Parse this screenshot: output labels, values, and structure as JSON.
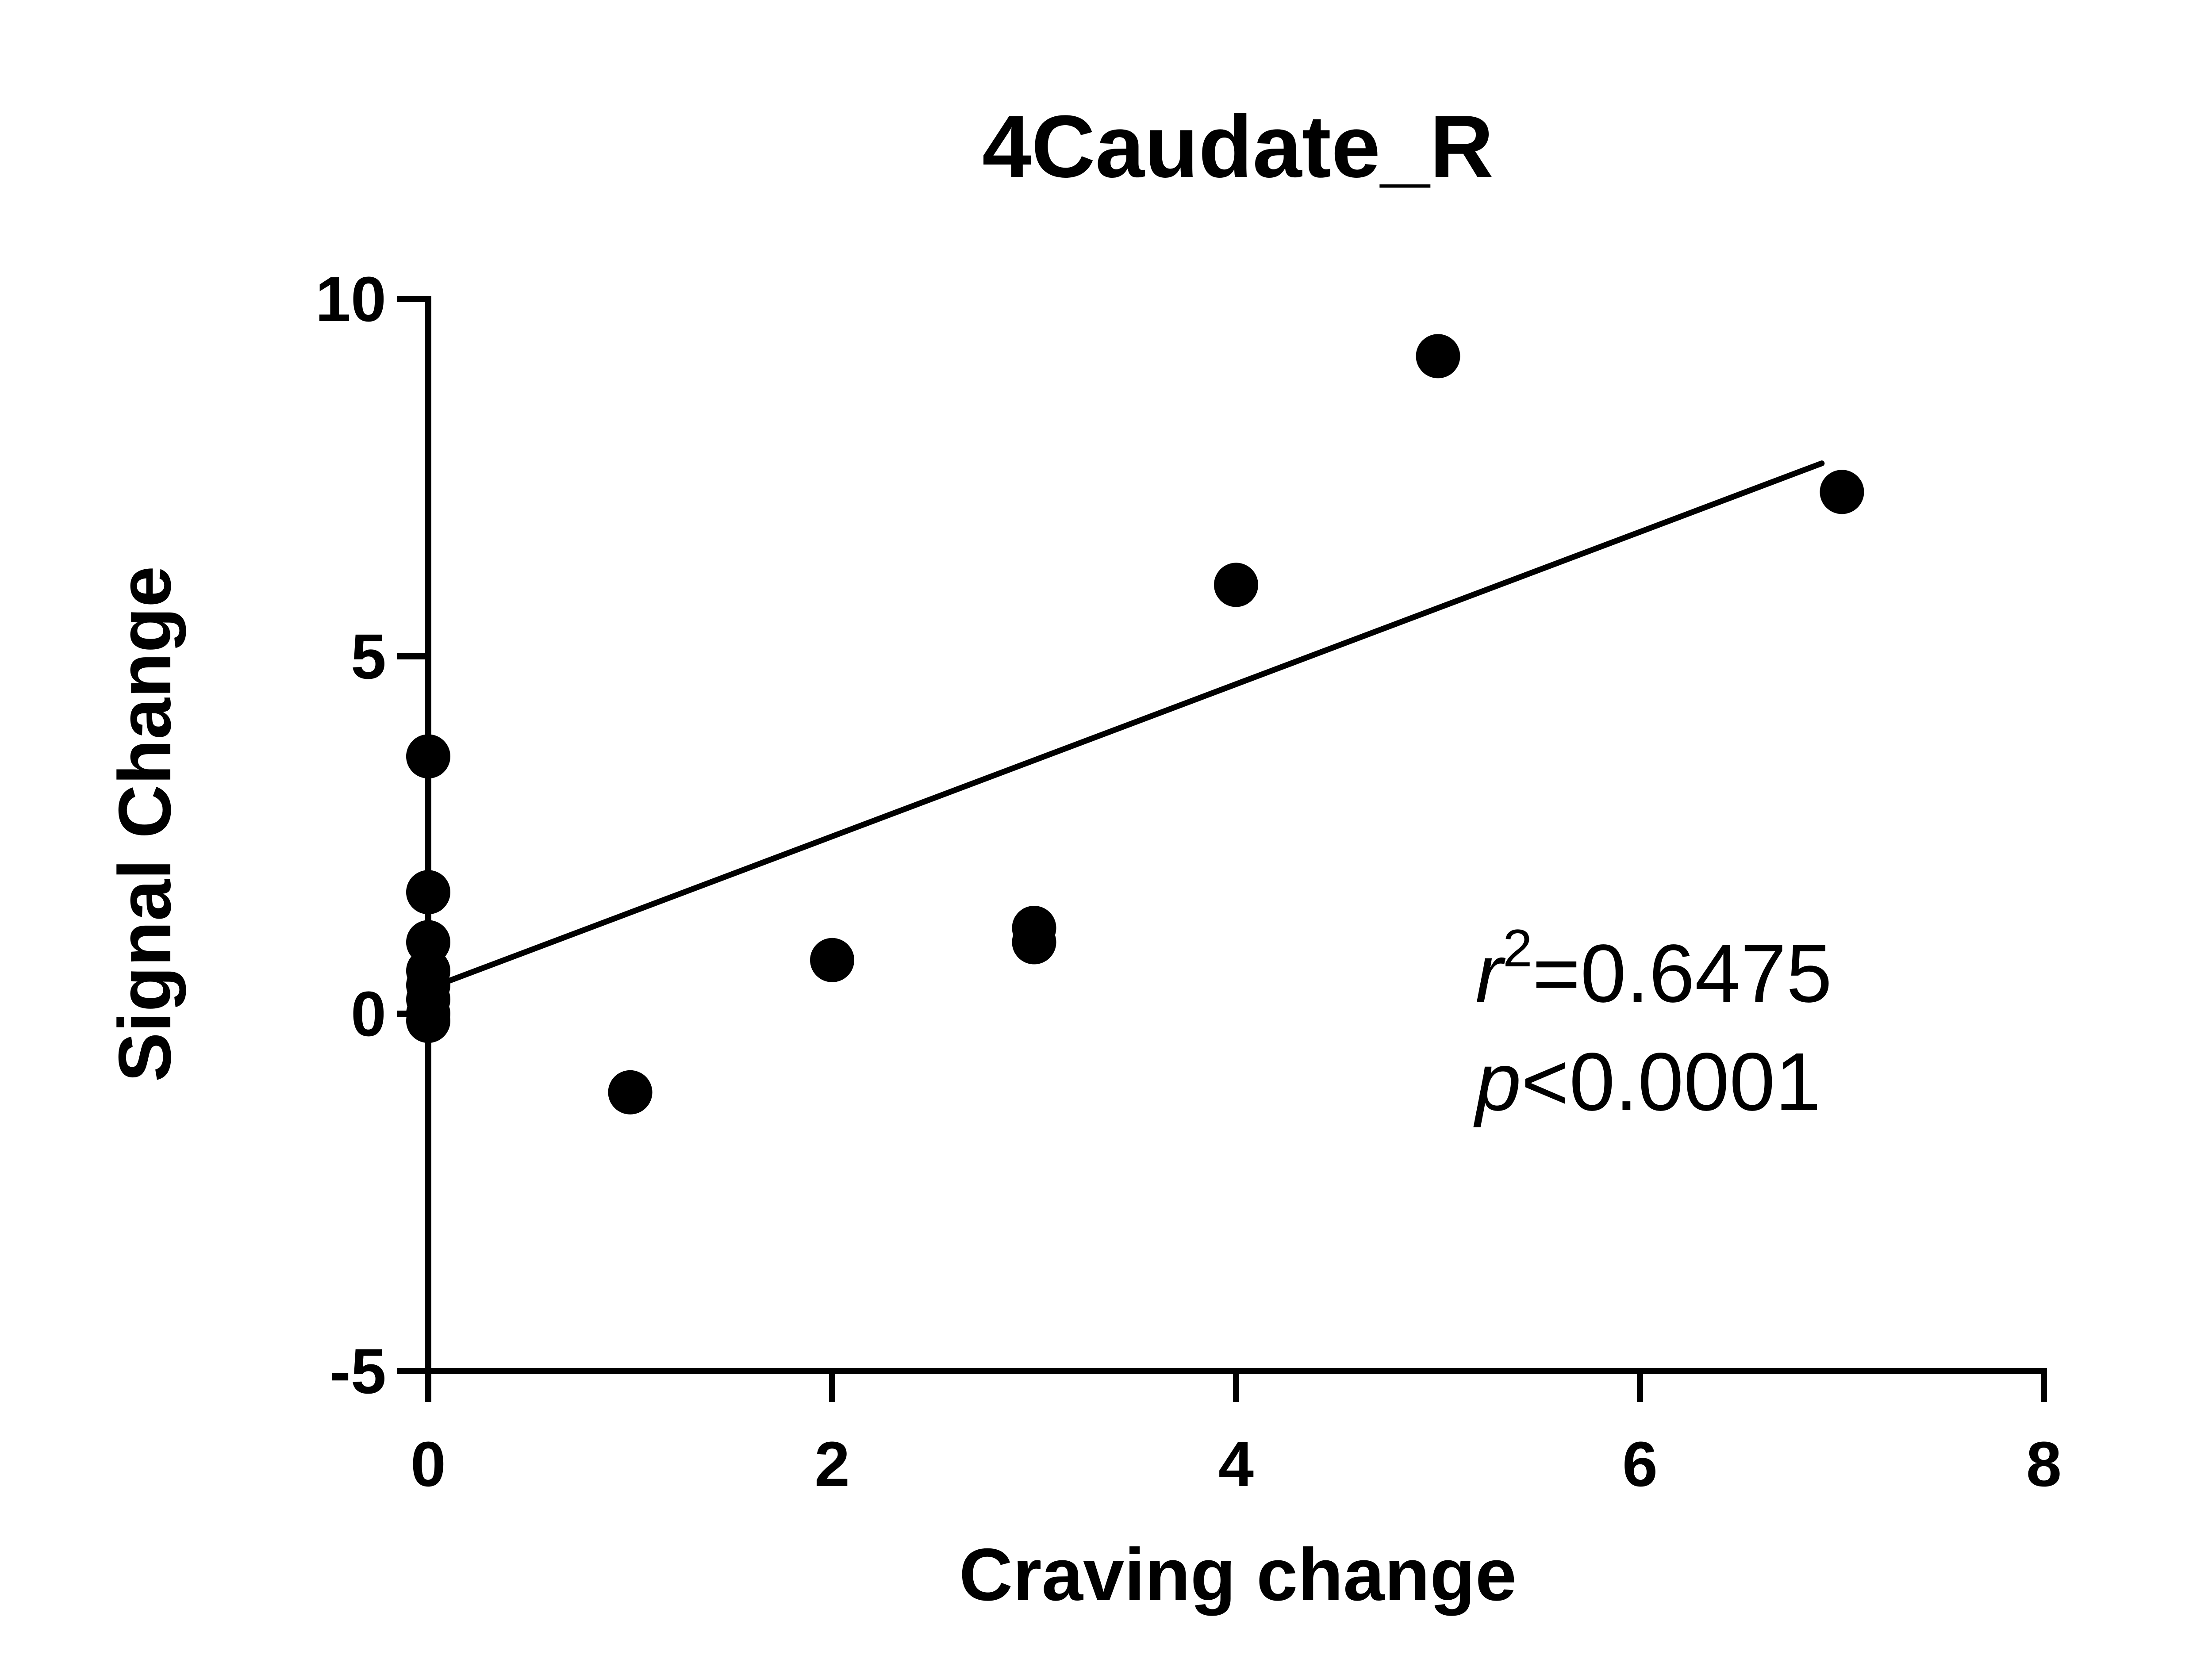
{
  "chart_data": {
    "type": "scatter",
    "title": "4Caudate_R",
    "xlabel": "Craving change",
    "ylabel": "Signal Change",
    "xlim": [
      0,
      8
    ],
    "ylim": [
      -5,
      10
    ],
    "x_ticks": [
      0,
      2,
      4,
      6,
      8
    ],
    "y_ticks": [
      -5,
      0,
      5,
      10
    ],
    "x_tick_labels": [
      "0",
      "2",
      "4",
      "6",
      "8"
    ],
    "y_tick_labels": [
      "-5",
      "0",
      "5",
      "10"
    ],
    "grid": false,
    "points": [
      {
        "x": 0,
        "y": 3.6
      },
      {
        "x": 0,
        "y": 1.7
      },
      {
        "x": 0,
        "y": 1.0
      },
      {
        "x": 0,
        "y": 0.6
      },
      {
        "x": 0,
        "y": 0.4
      },
      {
        "x": 0,
        "y": 0.2
      },
      {
        "x": 0,
        "y": 0.0
      },
      {
        "x": 0,
        "y": -0.1
      },
      {
        "x": 1,
        "y": -1.1
      },
      {
        "x": 2,
        "y": 0.75
      },
      {
        "x": 3,
        "y": 1.2
      },
      {
        "x": 3,
        "y": 1.0
      },
      {
        "x": 4,
        "y": 6.0
      },
      {
        "x": 5,
        "y": 9.2
      },
      {
        "x": 7,
        "y": 7.3
      }
    ],
    "fit_line": {
      "x_start": 0,
      "y_start": 0.35,
      "x_end": 6.9,
      "y_end": 7.7
    },
    "annotations": {
      "r_symbol": "r",
      "r_superscript": "2",
      "r_value": "=0.6475",
      "p_symbol": "p",
      "p_value": "<0.0001"
    },
    "colors": {
      "marker": "#000000",
      "line": "#000000",
      "axis": "#000000",
      "background": "#ffffff"
    }
  }
}
